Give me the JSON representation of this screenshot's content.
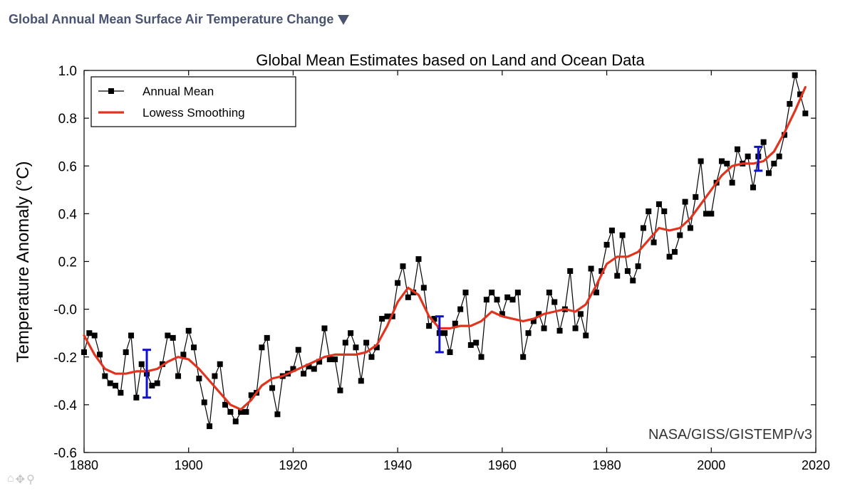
{
  "header": {
    "title": "Global Annual Mean Surface Air Temperature Change"
  },
  "toolbar": {
    "home_icon": "home-icon",
    "pan_icon": "pan-icon",
    "zoom_icon": "zoom-icon"
  },
  "chart_data": {
    "type": "line",
    "title": "Global Mean Estimates based on Land and Ocean Data",
    "xlabel": "",
    "ylabel": "Temperature Anomaly (°C)",
    "xlim": [
      1880,
      2020
    ],
    "ylim": [
      -0.6,
      1.0
    ],
    "xticks": [
      "1880",
      "1900",
      "1920",
      "1940",
      "1960",
      "1980",
      "2000",
      "2020"
    ],
    "yticks": [
      "-0.6",
      "-0.4",
      "-0.2",
      "-0.0",
      "0.2",
      "0.4",
      "0.6",
      "0.8",
      "1.0"
    ],
    "grid": false,
    "legend_position": "top-left",
    "annotation": "NASA/GISS/GISTEMP/v3",
    "series": [
      {
        "name": "Annual Mean",
        "color": "#000000",
        "marker": "square",
        "x": [
          1880,
          1881,
          1882,
          1883,
          1884,
          1885,
          1886,
          1887,
          1888,
          1889,
          1890,
          1891,
          1892,
          1893,
          1894,
          1895,
          1896,
          1897,
          1898,
          1899,
          1900,
          1901,
          1902,
          1903,
          1904,
          1905,
          1906,
          1907,
          1908,
          1909,
          1910,
          1911,
          1912,
          1913,
          1914,
          1915,
          1916,
          1917,
          1918,
          1919,
          1920,
          1921,
          1922,
          1923,
          1924,
          1925,
          1926,
          1927,
          1928,
          1929,
          1930,
          1931,
          1932,
          1933,
          1934,
          1935,
          1936,
          1937,
          1938,
          1939,
          1940,
          1941,
          1942,
          1943,
          1944,
          1945,
          1946,
          1947,
          1948,
          1949,
          1950,
          1951,
          1952,
          1953,
          1954,
          1955,
          1956,
          1957,
          1958,
          1959,
          1960,
          1961,
          1962,
          1963,
          1964,
          1965,
          1966,
          1967,
          1968,
          1969,
          1970,
          1971,
          1972,
          1973,
          1974,
          1975,
          1976,
          1977,
          1978,
          1979,
          1980,
          1981,
          1982,
          1983,
          1984,
          1985,
          1986,
          1987,
          1988,
          1989,
          1990,
          1991,
          1992,
          1993,
          1994,
          1995,
          1996,
          1997,
          1998,
          1999,
          2000,
          2001,
          2002,
          2003,
          2004,
          2005,
          2006,
          2007,
          2008,
          2009,
          2010,
          2011,
          2012,
          2013,
          2014,
          2015,
          2016,
          2017,
          2018
        ],
        "y": [
          -0.18,
          -0.1,
          -0.11,
          -0.19,
          -0.28,
          -0.31,
          -0.32,
          -0.35,
          -0.18,
          -0.11,
          -0.37,
          -0.23,
          -0.27,
          -0.32,
          -0.31,
          -0.23,
          -0.11,
          -0.12,
          -0.28,
          -0.19,
          -0.09,
          -0.16,
          -0.29,
          -0.39,
          -0.49,
          -0.28,
          -0.23,
          -0.4,
          -0.43,
          -0.47,
          -0.43,
          -0.43,
          -0.36,
          -0.35,
          -0.16,
          -0.12,
          -0.33,
          -0.44,
          -0.28,
          -0.27,
          -0.25,
          -0.17,
          -0.27,
          -0.24,
          -0.25,
          -0.22,
          -0.08,
          -0.21,
          -0.21,
          -0.34,
          -0.14,
          -0.1,
          -0.16,
          -0.3,
          -0.14,
          -0.2,
          -0.16,
          -0.04,
          -0.03,
          -0.03,
          0.11,
          0.18,
          0.05,
          0.07,
          0.21,
          0.09,
          -0.07,
          -0.04,
          -0.1,
          -0.1,
          -0.18,
          -0.06,
          0.0,
          0.07,
          -0.15,
          -0.14,
          -0.2,
          0.04,
          0.07,
          0.04,
          -0.02,
          0.05,
          0.04,
          0.07,
          -0.2,
          -0.1,
          -0.05,
          -0.02,
          -0.08,
          0.07,
          0.03,
          -0.09,
          0.0,
          0.16,
          -0.08,
          -0.02,
          -0.11,
          0.17,
          0.07,
          0.16,
          0.27,
          0.33,
          0.14,
          0.31,
          0.16,
          0.12,
          0.18,
          0.34,
          0.41,
          0.28,
          0.44,
          0.41,
          0.22,
          0.24,
          0.31,
          0.45,
          0.34,
          0.47,
          0.62,
          0.4,
          0.4,
          0.53,
          0.62,
          0.61,
          0.53,
          0.67,
          0.61,
          0.64,
          0.51,
          0.64,
          0.7,
          0.57,
          0.61,
          0.64,
          0.73,
          0.86,
          0.98,
          0.9,
          0.82
        ]
      },
      {
        "name": "Lowess Smoothing",
        "color": "#e0341e",
        "x": [
          1880,
          1882,
          1884,
          1886,
          1888,
          1890,
          1892,
          1894,
          1896,
          1898,
          1900,
          1902,
          1904,
          1906,
          1908,
          1910,
          1912,
          1914,
          1916,
          1918,
          1920,
          1922,
          1924,
          1926,
          1928,
          1930,
          1932,
          1934,
          1936,
          1938,
          1940,
          1942,
          1944,
          1946,
          1948,
          1950,
          1952,
          1954,
          1956,
          1958,
          1960,
          1962,
          1964,
          1966,
          1968,
          1970,
          1972,
          1974,
          1976,
          1978,
          1980,
          1982,
          1984,
          1986,
          1988,
          1990,
          1992,
          1994,
          1996,
          1998,
          2000,
          2002,
          2004,
          2006,
          2008,
          2010,
          2012,
          2014,
          2016,
          2018
        ],
        "y": [
          -0.11,
          -0.19,
          -0.25,
          -0.27,
          -0.27,
          -0.26,
          -0.26,
          -0.25,
          -0.22,
          -0.2,
          -0.21,
          -0.25,
          -0.3,
          -0.35,
          -0.4,
          -0.42,
          -0.38,
          -0.32,
          -0.29,
          -0.28,
          -0.26,
          -0.24,
          -0.22,
          -0.2,
          -0.19,
          -0.19,
          -0.19,
          -0.18,
          -0.15,
          -0.07,
          0.03,
          0.09,
          0.06,
          -0.03,
          -0.08,
          -0.08,
          -0.07,
          -0.07,
          -0.05,
          -0.01,
          -0.03,
          -0.04,
          -0.05,
          -0.04,
          -0.02,
          -0.01,
          0.0,
          -0.01,
          0.02,
          0.1,
          0.19,
          0.22,
          0.22,
          0.24,
          0.29,
          0.34,
          0.33,
          0.34,
          0.38,
          0.44,
          0.5,
          0.56,
          0.6,
          0.61,
          0.61,
          0.62,
          0.66,
          0.74,
          0.83,
          0.93
        ]
      }
    ],
    "error_bars": [
      {
        "x": 1892,
        "low": -0.37,
        "high": -0.17,
        "color": "#1010d0"
      },
      {
        "x": 1948,
        "low": -0.18,
        "high": -0.03,
        "color": "#1010d0"
      },
      {
        "x": 2009,
        "low": 0.58,
        "high": 0.68,
        "color": "#1010d0"
      }
    ]
  }
}
